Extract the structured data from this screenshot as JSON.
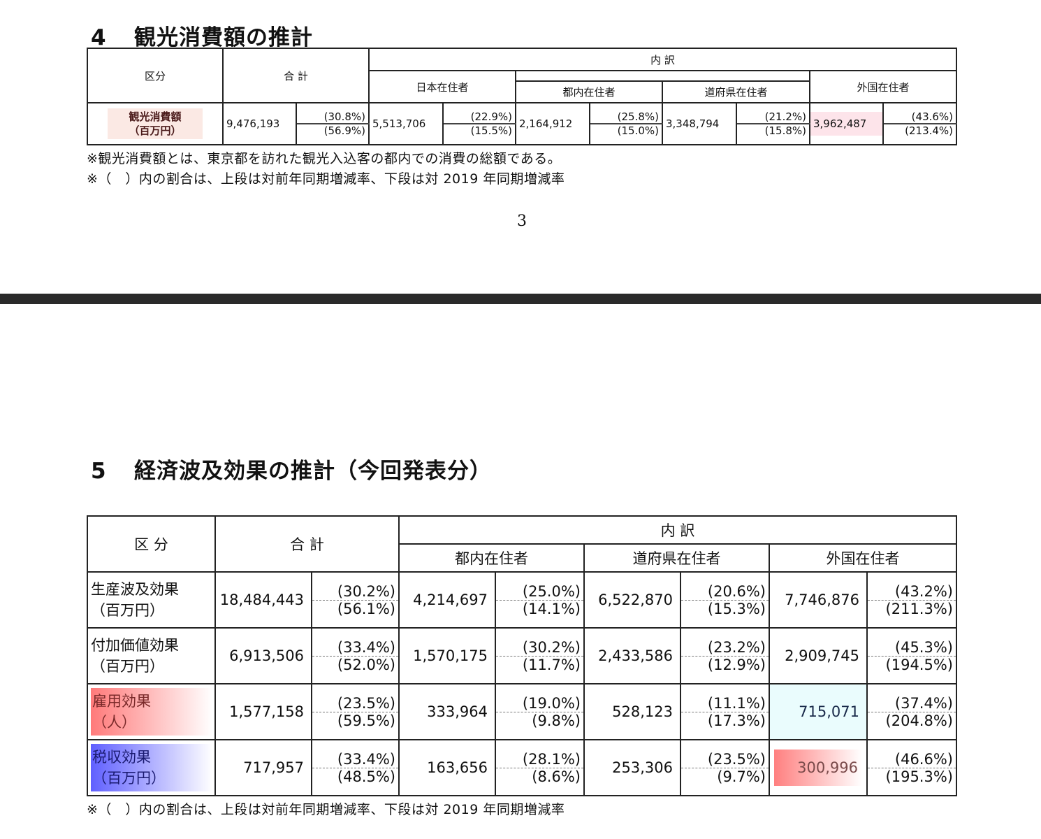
{
  "section4": {
    "number": "4",
    "title": "観光消費額の推計",
    "headers": {
      "category": "区分",
      "total": "合 計",
      "breakdown": "内 訳",
      "japan": "日本在住者",
      "tokyo": "都内在住者",
      "other_pref": "道府県在住者",
      "foreign": "外国在住者"
    },
    "row": {
      "label_line1": "観光消費額",
      "label_line2": "（百万円）",
      "cells": [
        {
          "value": "9,476,193",
          "yoy": "(30.8%)",
          "vs2019": "(56.9%)"
        },
        {
          "value": "5,513,706",
          "yoy": "(22.9%)",
          "vs2019": "(15.5%)"
        },
        {
          "value": "2,164,912",
          "yoy": "(25.8%)",
          "vs2019": "(15.0%)"
        },
        {
          "value": "3,348,794",
          "yoy": "(21.2%)",
          "vs2019": "(15.8%)"
        },
        {
          "value": "3,962,487",
          "yoy": "(43.6%)",
          "vs2019": "(213.4%)"
        }
      ]
    },
    "note1": "※観光消費額とは、東京都を訪れた観光入込客の都内での消費の総額である。",
    "note2": "※（　）内の割合は、上段は対前年同期増減率、下段は対 2019 年同期増減率"
  },
  "page_number": "3",
  "section5": {
    "number": "5",
    "title": "経済波及効果の推計（今回発表分）",
    "headers": {
      "category": "区 分",
      "total": "合 計",
      "breakdown": "内 訳",
      "tokyo": "都内在住者",
      "other_pref": "道府県在住者",
      "foreign": "外国在住者"
    },
    "rows": [
      {
        "label_line1": "生産波及効果",
        "label_line2": "（百万円）",
        "cells": [
          {
            "value": "18,484,443",
            "yoy": "(30.2%)",
            "vs2019": "(56.1%)"
          },
          {
            "value": "4,214,697",
            "yoy": "(25.0%)",
            "vs2019": "(14.1%)"
          },
          {
            "value": "6,522,870",
            "yoy": "(20.6%)",
            "vs2019": "(15.3%)"
          },
          {
            "value": "7,746,876",
            "yoy": "(43.2%)",
            "vs2019": "(211.3%)"
          }
        ]
      },
      {
        "label_line1": "付加価値効果",
        "label_line2": "（百万円）",
        "cells": [
          {
            "value": "6,913,506",
            "yoy": "(33.4%)",
            "vs2019": "(52.0%)"
          },
          {
            "value": "1,570,175",
            "yoy": "(30.2%)",
            "vs2019": "(11.7%)"
          },
          {
            "value": "2,433,586",
            "yoy": "(23.2%)",
            "vs2019": "(12.9%)"
          },
          {
            "value": "2,909,745",
            "yoy": "(45.3%)",
            "vs2019": "(194.5%)"
          }
        ]
      },
      {
        "label_line1": "雇用効果",
        "label_line2": "（人）",
        "cells": [
          {
            "value": "1,577,158",
            "yoy": "(23.5%)",
            "vs2019": "(59.5%)"
          },
          {
            "value": "333,964",
            "yoy": "(19.0%)",
            "vs2019": "(9.8%)"
          },
          {
            "value": "528,123",
            "yoy": "(11.1%)",
            "vs2019": "(17.3%)"
          },
          {
            "value": "715,071",
            "yoy": "(37.4%)",
            "vs2019": "(204.8%)"
          }
        ]
      },
      {
        "label_line1": "税収効果",
        "label_line2": "（百万円）",
        "cells": [
          {
            "value": "717,957",
            "yoy": "(33.4%)",
            "vs2019": "(48.5%)"
          },
          {
            "value": "163,656",
            "yoy": "(28.1%)",
            "vs2019": "(8.6%)"
          },
          {
            "value": "253,306",
            "yoy": "(23.5%)",
            "vs2019": "(9.7%)"
          },
          {
            "value": "300,996",
            "yoy": "(46.6%)",
            "vs2019": "(195.3%)"
          }
        ]
      }
    ],
    "note": "※（　）内の割合は、上段は対前年同期増減率、下段は対 2019 年同期増減率"
  }
}
